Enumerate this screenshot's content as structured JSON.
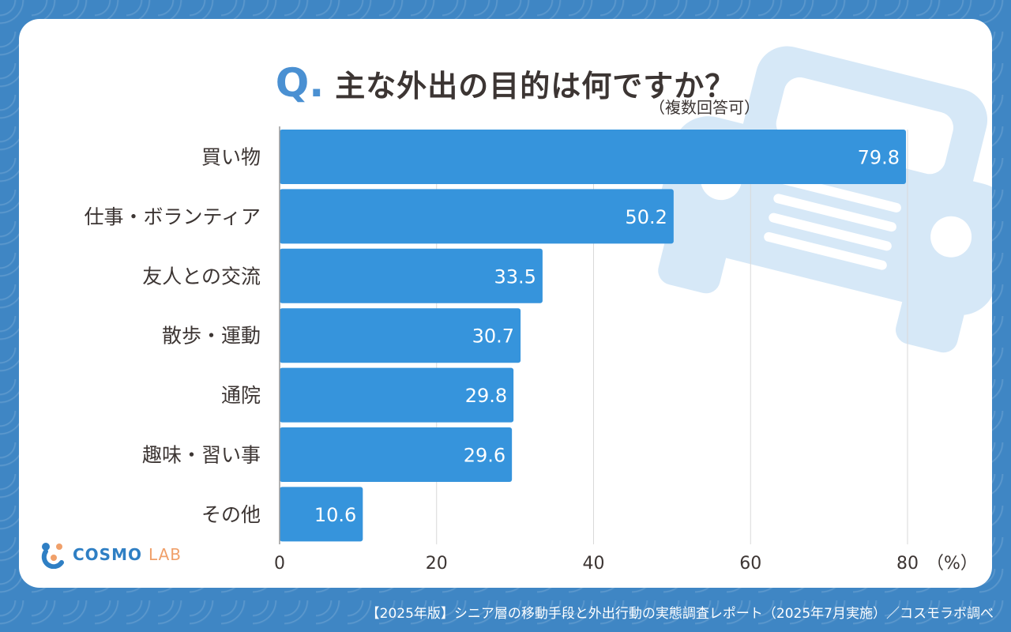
{
  "header": {
    "q_mark": "Q.",
    "title": "主な外出の目的は何ですか？",
    "subtitle": "（複数回答可）"
  },
  "logo": {
    "name": "COSMO",
    "suffix": "LAB"
  },
  "footer": {
    "text": "【2025年版】シニア層の移動手段と外出行動の実態調査レポート（2025年7月実施）／コスモラボ調べ"
  },
  "colors": {
    "bar": "#3694dc",
    "accent": "#4a90d2",
    "background": "#3f86c4",
    "car_watermark": "#d6e8f7"
  },
  "chart_data": {
    "type": "bar",
    "orientation": "horizontal",
    "title": "主な外出の目的は何ですか？",
    "categories": [
      "買い物",
      "仕事・ボランティア",
      "友人との交流",
      "散歩・運動",
      "通院",
      "趣味・習い事",
      "その他"
    ],
    "values": [
      79.8,
      50.2,
      33.5,
      30.7,
      29.8,
      29.6,
      10.6
    ],
    "value_labels": [
      "79.8",
      "50.2",
      "33.5",
      "30.7",
      "29.8",
      "29.6",
      "10.6"
    ],
    "xticks": [
      "0",
      "20",
      "40",
      "60",
      "80"
    ],
    "xtick_values": [
      0,
      20,
      40,
      60,
      80
    ],
    "unit_label": "（%）",
    "xlim": [
      0,
      80
    ],
    "grid": true,
    "legend": "none"
  }
}
